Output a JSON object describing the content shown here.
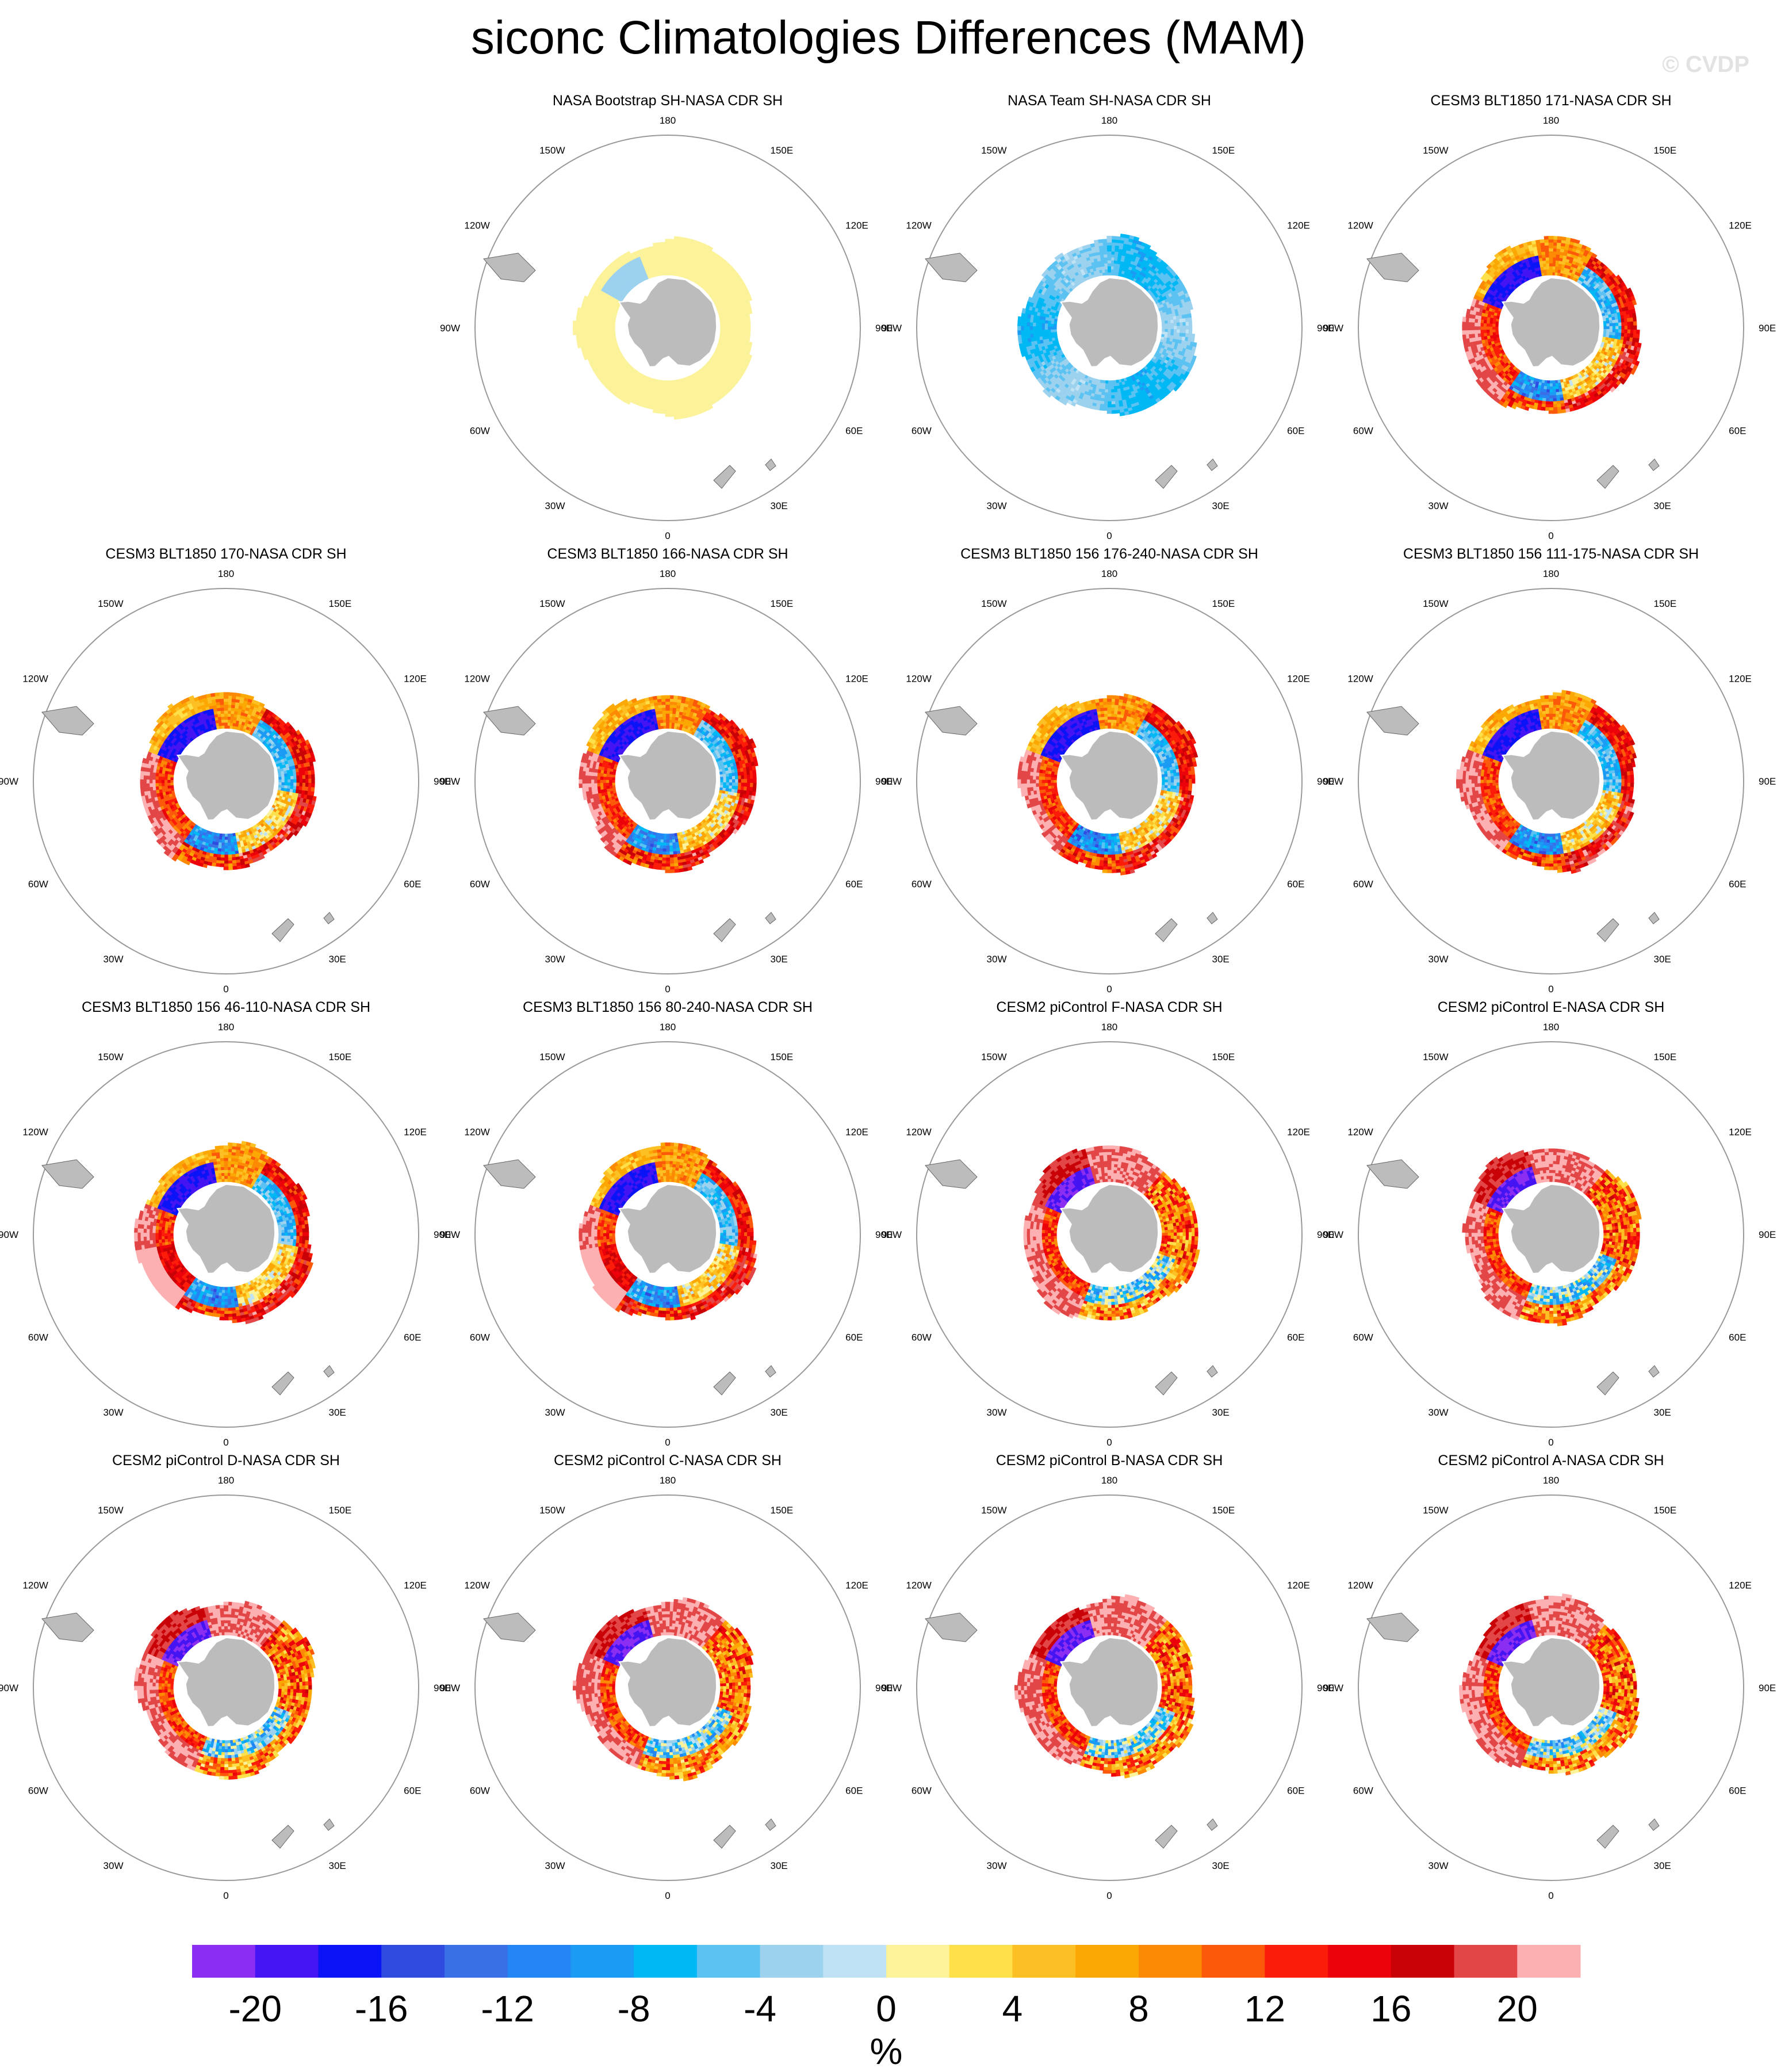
{
  "title": "siconc Climatologies Differences (MAM)",
  "watermark": "© CVDP",
  "chart_data": {
    "type": "heatmap",
    "projection": "south-polar-stereographic",
    "title": "siconc Climatologies Differences (MAM)",
    "lon_labels": [
      "0",
      "30E",
      "60E",
      "90E",
      "120E",
      "150E",
      "180",
      "150W",
      "120W",
      "90W",
      "60W",
      "30W"
    ],
    "panels": [
      {
        "title": "NASA Bootstrap SH-NASA CDR SH",
        "pattern": "bootstrap"
      },
      {
        "title": "NASA Team SH-NASA CDR SH",
        "pattern": "team"
      },
      {
        "title": "CESM3 BLT1850 171-NASA CDR SH",
        "pattern": "cesm3"
      },
      {
        "title": "CESM3 BLT1850 170-NASA CDR SH",
        "pattern": "cesm3"
      },
      {
        "title": "CESM3 BLT1850 166-NASA CDR SH",
        "pattern": "cesm3"
      },
      {
        "title": "CESM3 BLT1850 156 176-240-NASA CDR SH",
        "pattern": "cesm3"
      },
      {
        "title": "CESM3 BLT1850 156 111-175-NASA CDR SH",
        "pattern": "cesm3"
      },
      {
        "title": "CESM3 BLT1850 156 46-110-NASA CDR SH",
        "pattern": "cesm3b"
      },
      {
        "title": "CESM3 BLT1850 156 80-240-NASA CDR SH",
        "pattern": "cesm3b"
      },
      {
        "title": "CESM2 piControl F-NASA CDR SH",
        "pattern": "cesm2"
      },
      {
        "title": "CESM2 piControl E-NASA CDR SH",
        "pattern": "cesm2"
      },
      {
        "title": "CESM2 piControl D-NASA CDR SH",
        "pattern": "cesm2"
      },
      {
        "title": "CESM2 piControl C-NASA CDR SH",
        "pattern": "cesm2"
      },
      {
        "title": "CESM2 piControl B-NASA CDR SH",
        "pattern": "cesm2"
      },
      {
        "title": "CESM2 piControl A-NASA CDR SH",
        "pattern": "cesm2"
      }
    ],
    "colorbar": {
      "unit": "%",
      "tick_labels": [
        "-20",
        "-16",
        "-12",
        "-8",
        "-4",
        "0",
        "4",
        "8",
        "12",
        "16",
        "20"
      ],
      "levels": [
        -22,
        -20,
        -18,
        -16,
        -14,
        -12,
        -10,
        -8,
        -6,
        -4,
        -2,
        0,
        2,
        4,
        6,
        8,
        10,
        12,
        14,
        16,
        18,
        20,
        22
      ],
      "colors": [
        "#8b2ef2",
        "#4514f2",
        "#0a14f6",
        "#304be0",
        "#3a70e6",
        "#2486f4",
        "#1b9bf4",
        "#00b8f4",
        "#5bc2f2",
        "#9dd2ef",
        "#bfe2f4",
        "#fbf29a",
        "#fde04a",
        "#fdc024",
        "#fca804",
        "#fc8a04",
        "#fc5a0a",
        "#fc1c0a",
        "#ec020a",
        "#c80206",
        "#e24646",
        "#fcb0b2"
      ]
    }
  }
}
